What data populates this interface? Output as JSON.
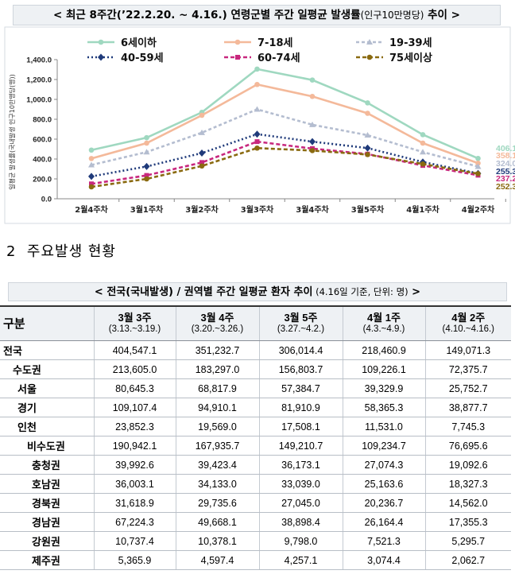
{
  "chart": {
    "title_main": "< 최근 8주간(’22.2.20. ~ 4.16.) 연령군별 주간 일평균 발생률",
    "title_sub": "(인구10만명당)",
    "title_end": " 추이 >"
  },
  "chart_data": {
    "type": "line",
    "ylabel": "일평균 발생률(국내발생 인구10만명당(명))",
    "ylim": [
      0,
      1400
    ],
    "yticks": [
      "0.0",
      "200.0",
      "400.0",
      "600.0",
      "800.0",
      "1,000.0",
      "1,200.0",
      "1,400.0"
    ],
    "ytick_values": [
      0,
      200,
      400,
      600,
      800,
      1000,
      1200,
      1400
    ],
    "categories": [
      "2월4주차",
      "3월1주차",
      "3월2주차",
      "3월3주차",
      "3월4주차",
      "3월5주차",
      "4월1주차",
      "4월2주차"
    ],
    "series": [
      {
        "name": "6세이하",
        "color": "#9fd8c0",
        "dash": "",
        "marker": "circle",
        "values": [
          490,
          615,
          870,
          1305,
          1195,
          965,
          645,
          406.1
        ],
        "end_label": "406.1"
      },
      {
        "name": "7-18세",
        "color": "#f4b99a",
        "dash": "",
        "marker": "circle",
        "values": [
          405,
          560,
          840,
          1150,
          1030,
          860,
          560,
          358.1
        ],
        "end_label": "358.1"
      },
      {
        "name": "19-39세",
        "color": "#b4bdd0",
        "dash": "4,3",
        "marker": "triangle",
        "values": [
          340,
          470,
          665,
          900,
          745,
          640,
          470,
          324.0
        ],
        "end_label": "324.0"
      },
      {
        "name": "40-59세",
        "color": "#1f3a7a",
        "dash": "2,3",
        "marker": "diamond",
        "values": [
          225,
          325,
          460,
          650,
          575,
          510,
          370,
          255.3
        ],
        "end_label": "255.3"
      },
      {
        "name": "60-74세",
        "color": "#c8287e",
        "dash": "5,3",
        "marker": "square",
        "values": [
          150,
          235,
          365,
          575,
          505,
          450,
          335,
          237.2
        ],
        "end_label": "237.2"
      },
      {
        "name": "75세이상",
        "color": "#8a6a10",
        "dash": "5,3",
        "marker": "circle",
        "values": [
          120,
          200,
          330,
          510,
          485,
          445,
          350,
          252.3
        ],
        "end_label": "252.3"
      }
    ]
  },
  "section": {
    "number": "2",
    "title": "주요발생 현황"
  },
  "table": {
    "title_main": "< 전국(국내발생) / 권역별 주간 일평균 환자 추이",
    "title_sub": " (4.16일 기준, 단위: 명)",
    "title_end": " >",
    "header_label": "구분",
    "weeks": [
      {
        "week": "3월 3주",
        "range": "(3.13.~3.19.)"
      },
      {
        "week": "3월 4주",
        "range": "(3.20.~3.26.)"
      },
      {
        "week": "3월 5주",
        "range": "(3.27.~4.2.)"
      },
      {
        "week": "4월 1주",
        "range": "(4.3.~4.9.)"
      },
      {
        "week": "4월 2주",
        "range": "(4.10.~4.16.)"
      }
    ],
    "rows": [
      {
        "region": "전국",
        "values": [
          "404,547.1",
          "351,232.7",
          "306,014.4",
          "218,460.9",
          "149,071.3"
        ]
      },
      {
        "region": "수도권",
        "values": [
          "213,605.0",
          "183,297.0",
          "156,803.7",
          "109,226.1",
          "72,375.7"
        ]
      },
      {
        "region": "서울",
        "values": [
          "80,645.3",
          "68,817.9",
          "57,384.7",
          "39,329.9",
          "25,752.7"
        ]
      },
      {
        "region": "경기",
        "values": [
          "109,107.4",
          "94,910.1",
          "81,910.9",
          "58,365.3",
          "38,877.7"
        ]
      },
      {
        "region": "인천",
        "values": [
          "23,852.3",
          "19,569.0",
          "17,508.1",
          "11,531.0",
          "7,745.3"
        ]
      },
      {
        "region": "비수도권",
        "values": [
          "190,942.1",
          "167,935.7",
          "149,210.7",
          "109,234.7",
          "76,695.6"
        ]
      },
      {
        "region": "충청권",
        "values": [
          "39,992.6",
          "39,423.4",
          "36,173.1",
          "27,074.3",
          "19,092.6"
        ]
      },
      {
        "region": "호남권",
        "values": [
          "36,003.1",
          "34,133.0",
          "33,039.0",
          "25,163.6",
          "18,327.3"
        ]
      },
      {
        "region": "경북권",
        "values": [
          "31,618.9",
          "29,735.6",
          "27,045.0",
          "20,236.7",
          "14,562.0"
        ]
      },
      {
        "region": "경남권",
        "values": [
          "67,224.3",
          "49,668.1",
          "38,898.4",
          "26,164.4",
          "17,355.3"
        ]
      },
      {
        "region": "강원권",
        "values": [
          "10,737.4",
          "10,378.1",
          "9,798.0",
          "7,521.3",
          "5,295.7"
        ]
      },
      {
        "region": "제주권",
        "values": [
          "5,365.9",
          "4,597.4",
          "4,257.1",
          "3,074.4",
          "2,062.7"
        ]
      }
    ]
  }
}
